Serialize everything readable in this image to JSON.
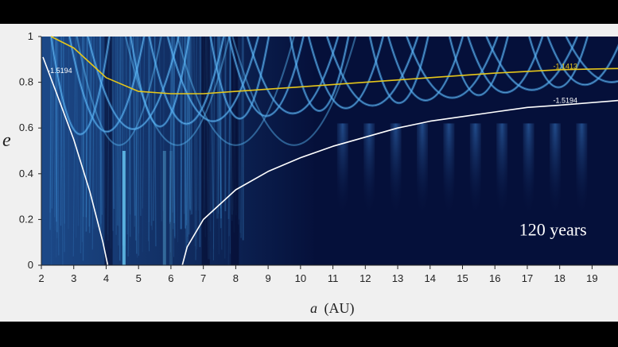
{
  "chart_data": {
    "type": "heatmap",
    "xlabel_var": "a",
    "xlabel_unit": "(AU)",
    "ylabel": "e",
    "xlim": [
      2,
      19.8
    ],
    "ylim": [
      0,
      1
    ],
    "x_ticks": [
      "2",
      "3",
      "4",
      "5",
      "6",
      "7",
      "8",
      "9",
      "10",
      "11",
      "12",
      "13",
      "14",
      "15",
      "16",
      "17",
      "18",
      "19"
    ],
    "y_ticks": [
      "0",
      "0.2",
      "0.4",
      "0.6",
      "0.8",
      "1"
    ],
    "annotation": "120 years",
    "colors": {
      "background": "#05103a",
      "map_high": "#5ec8ff",
      "yellow_curve": "#e6c619",
      "white_curve": "#ffffff"
    },
    "curves": [
      {
        "label": "-1.5194",
        "color": "white",
        "points": [
          [
            2.05,
            0.91
          ],
          [
            2.5,
            0.74
          ],
          [
            3.0,
            0.55
          ],
          [
            3.5,
            0.32
          ],
          [
            3.9,
            0.1
          ],
          [
            4.05,
            0
          ]
        ]
      },
      {
        "label": "-1.1413",
        "color": "yellow",
        "points": [
          [
            2.3,
            1.0
          ],
          [
            3,
            0.95
          ],
          [
            4,
            0.82
          ],
          [
            5,
            0.76
          ],
          [
            6,
            0.75
          ],
          [
            7,
            0.75
          ],
          [
            8,
            0.76
          ],
          [
            10,
            0.78
          ],
          [
            12,
            0.8
          ],
          [
            14,
            0.82
          ],
          [
            16,
            0.84
          ],
          [
            18,
            0.855
          ],
          [
            19.8,
            0.86
          ]
        ]
      },
      {
        "label": "-1.5194",
        "color": "white",
        "points": [
          [
            6.35,
            0
          ],
          [
            6.5,
            0.08
          ],
          [
            7,
            0.2
          ],
          [
            8,
            0.33
          ],
          [
            9,
            0.41
          ],
          [
            10,
            0.47
          ],
          [
            11,
            0.52
          ],
          [
            12,
            0.56
          ],
          [
            13,
            0.6
          ],
          [
            14,
            0.63
          ],
          [
            15,
            0.65
          ],
          [
            16,
            0.67
          ],
          [
            17,
            0.69
          ],
          [
            18,
            0.7
          ],
          [
            19.8,
            0.72
          ]
        ]
      }
    ],
    "curve_label_positions": [
      [
        2.2,
        0.84
      ],
      [
        17.8,
        0.86
      ],
      [
        17.8,
        0.71
      ]
    ]
  }
}
